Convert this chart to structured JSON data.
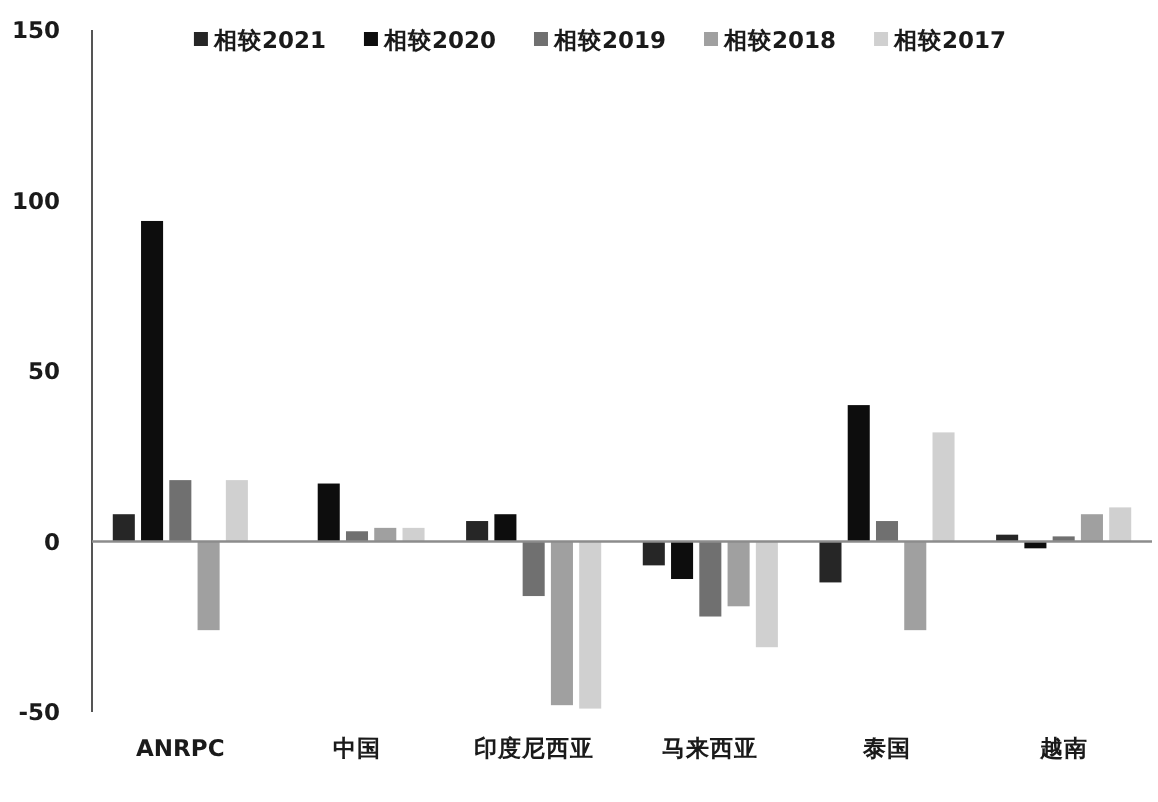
{
  "chart_data": {
    "type": "bar",
    "categories": [
      "ANRPC",
      "中国",
      "印度尼西亚",
      "马来西亚",
      "泰国",
      "越南"
    ],
    "series": [
      {
        "name": "相较2021",
        "color": "#262626",
        "values": [
          8,
          null,
          6,
          -7,
          -12,
          2
        ]
      },
      {
        "name": "相较2020",
        "color": "#0d0d0d",
        "values": [
          94,
          17,
          8,
          -11,
          40,
          -2
        ]
      },
      {
        "name": "相较2019",
        "color": "#707070",
        "values": [
          18,
          3,
          -16,
          -22,
          6,
          1.5
        ]
      },
      {
        "name": "相较2018",
        "color": "#a0a0a0",
        "values": [
          -26,
          4,
          -48,
          -19,
          -26,
          8
        ]
      },
      {
        "name": "相较2017",
        "color": "#d0d0d0",
        "values": [
          18,
          4,
          -49,
          -31,
          32,
          10
        ]
      }
    ],
    "ylim": [
      -50,
      150
    ],
    "yticks": [
      -50,
      0,
      50,
      100,
      150
    ],
    "legend": "top"
  }
}
